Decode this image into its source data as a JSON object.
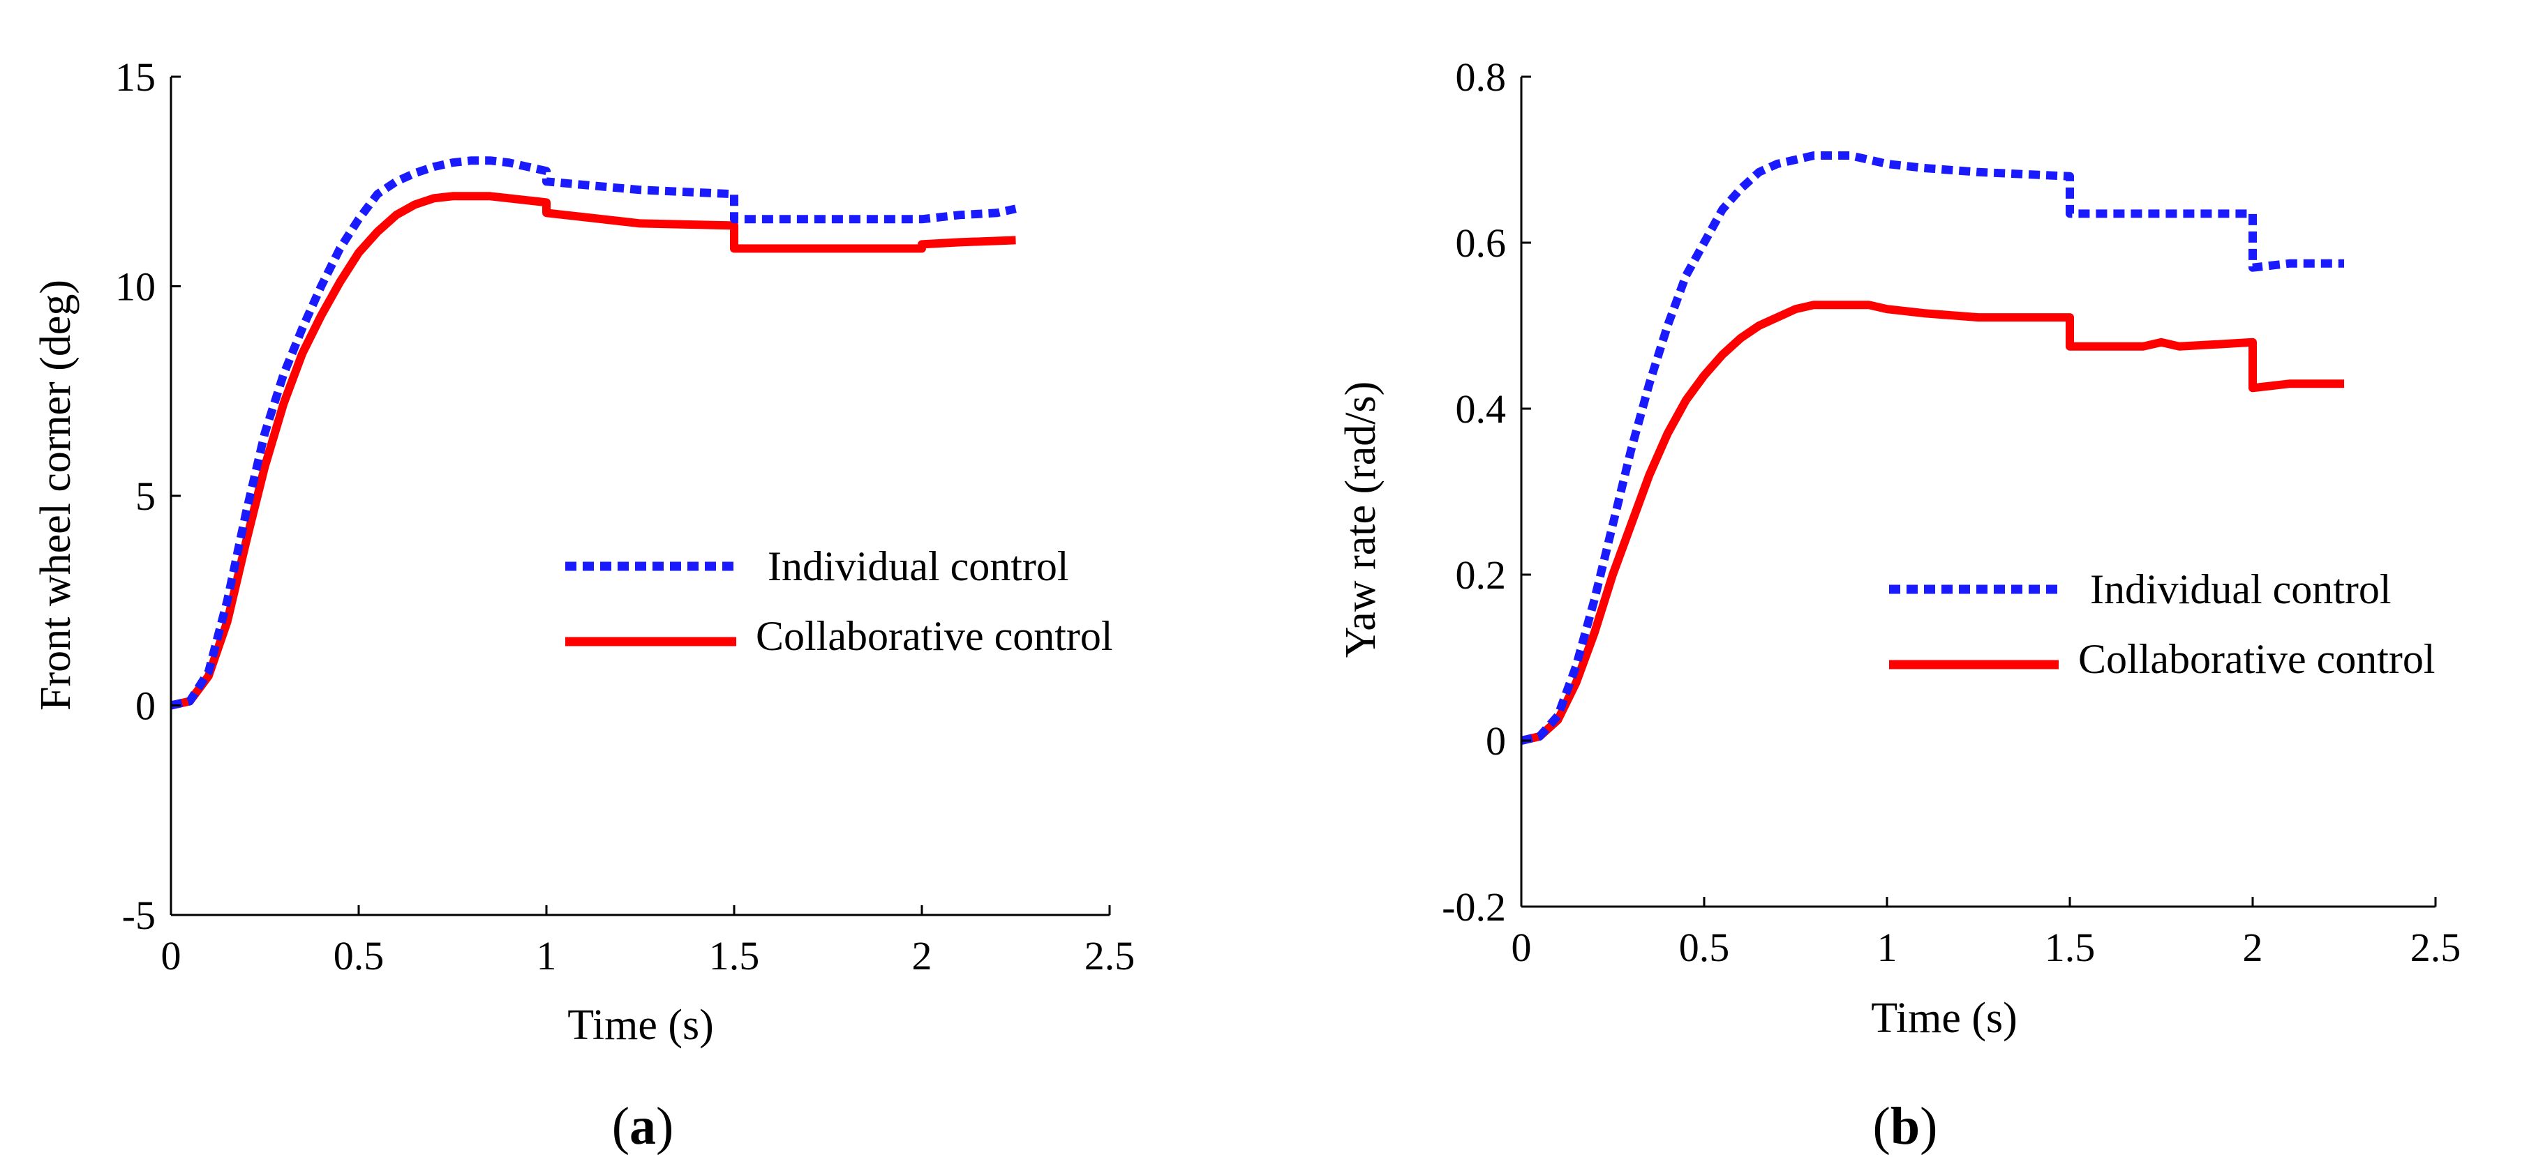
{
  "figure": {
    "panel_a_letter": "a",
    "panel_b_letter": "b"
  },
  "colors": {
    "individual": "#1a1aff",
    "collaborative": "#ff0000",
    "axis": "#000000"
  },
  "chart_data": [
    {
      "id": "a",
      "type": "line",
      "title": "",
      "xlabel": "Time (s)",
      "ylabel": "Front wheel corner (deg)",
      "xlim": [
        0,
        2.5
      ],
      "ylim": [
        -5,
        15
      ],
      "xticks": [
        0,
        0.5,
        1,
        1.5,
        2,
        2.5
      ],
      "xtick_labels": [
        "0",
        "0.5",
        "1",
        "1.5",
        "2",
        "2.5"
      ],
      "yticks": [
        -5,
        0,
        5,
        10,
        15
      ],
      "ytick_labels": [
        "-5",
        "0",
        "5",
        "10",
        "15"
      ],
      "legend_position": "center-right",
      "series": [
        {
          "name": "Individual control",
          "style": "dotted",
          "x": [
            0,
            0.05,
            0.1,
            0.15,
            0.2,
            0.25,
            0.3,
            0.35,
            0.4,
            0.45,
            0.5,
            0.55,
            0.6,
            0.65,
            0.7,
            0.75,
            0.8,
            0.85,
            0.9,
            0.95,
            1.0,
            1.0,
            1.25,
            1.5,
            1.5,
            1.75,
            2.0,
            2.1,
            2.2,
            2.25
          ],
          "values": [
            0,
            0.1,
            0.8,
            2.5,
            4.6,
            6.5,
            7.9,
            9.0,
            10.0,
            10.9,
            11.6,
            12.2,
            12.5,
            12.7,
            12.85,
            12.95,
            13.0,
            13.0,
            12.95,
            12.85,
            12.75,
            12.5,
            12.3,
            12.2,
            11.6,
            11.6,
            11.6,
            11.7,
            11.75,
            11.85
          ]
        },
        {
          "name": "Collaborative control",
          "style": "solid",
          "x": [
            0,
            0.05,
            0.1,
            0.15,
            0.2,
            0.25,
            0.3,
            0.35,
            0.4,
            0.45,
            0.5,
            0.55,
            0.6,
            0.65,
            0.7,
            0.75,
            0.8,
            0.85,
            0.9,
            0.95,
            1.0,
            1.0,
            1.1,
            1.25,
            1.5,
            1.5,
            1.75,
            2.0,
            2.0,
            2.1,
            2.25
          ],
          "values": [
            0,
            0.1,
            0.7,
            2.0,
            3.9,
            5.7,
            7.2,
            8.4,
            9.3,
            10.1,
            10.8,
            11.3,
            11.7,
            11.95,
            12.1,
            12.15,
            12.15,
            12.15,
            12.1,
            12.05,
            12.0,
            11.75,
            11.65,
            11.5,
            11.45,
            10.9,
            10.9,
            10.9,
            11.0,
            11.05,
            11.1
          ]
        }
      ]
    },
    {
      "id": "b",
      "type": "line",
      "title": "",
      "xlabel": "Time (s)",
      "ylabel": "Yaw rate (rad/s)",
      "xlim": [
        0,
        2.5
      ],
      "ylim": [
        -0.2,
        0.8
      ],
      "xticks": [
        0,
        0.5,
        1,
        1.5,
        2,
        2.5
      ],
      "xtick_labels": [
        "0",
        "0.5",
        "1",
        "1.5",
        "2",
        "2.5"
      ],
      "yticks": [
        -0.2,
        0,
        0.2,
        0.4,
        0.6,
        0.8
      ],
      "ytick_labels": [
        "-0.2",
        "0",
        "0.2",
        "0.4",
        "0.6",
        "0.8"
      ],
      "legend_position": "center-right",
      "series": [
        {
          "name": "Individual control",
          "style": "dotted",
          "x": [
            0,
            0.05,
            0.1,
            0.15,
            0.2,
            0.25,
            0.3,
            0.35,
            0.4,
            0.45,
            0.5,
            0.55,
            0.6,
            0.65,
            0.7,
            0.75,
            0.8,
            0.85,
            0.9,
            0.95,
            1.0,
            1.1,
            1.25,
            1.5,
            1.5,
            1.75,
            2.0,
            2.0,
            2.1,
            2.25
          ],
          "values": [
            0,
            0.005,
            0.03,
            0.09,
            0.17,
            0.26,
            0.35,
            0.43,
            0.5,
            0.56,
            0.6,
            0.64,
            0.665,
            0.685,
            0.695,
            0.7,
            0.705,
            0.705,
            0.705,
            0.7,
            0.695,
            0.69,
            0.685,
            0.68,
            0.635,
            0.635,
            0.635,
            0.57,
            0.575,
            0.575
          ]
        },
        {
          "name": "Collaborative control",
          "style": "solid",
          "x": [
            0,
            0.05,
            0.1,
            0.15,
            0.2,
            0.25,
            0.3,
            0.35,
            0.4,
            0.45,
            0.5,
            0.55,
            0.6,
            0.65,
            0.7,
            0.75,
            0.8,
            0.85,
            0.9,
            0.95,
            1.0,
            1.1,
            1.25,
            1.5,
            1.5,
            1.7,
            1.75,
            1.8,
            2.0,
            2.0,
            2.1,
            2.25
          ],
          "values": [
            0,
            0.005,
            0.025,
            0.07,
            0.13,
            0.2,
            0.26,
            0.32,
            0.37,
            0.41,
            0.44,
            0.465,
            0.485,
            0.5,
            0.51,
            0.52,
            0.525,
            0.525,
            0.525,
            0.525,
            0.52,
            0.515,
            0.51,
            0.51,
            0.475,
            0.475,
            0.48,
            0.475,
            0.48,
            0.425,
            0.43,
            0.43
          ]
        }
      ]
    }
  ]
}
